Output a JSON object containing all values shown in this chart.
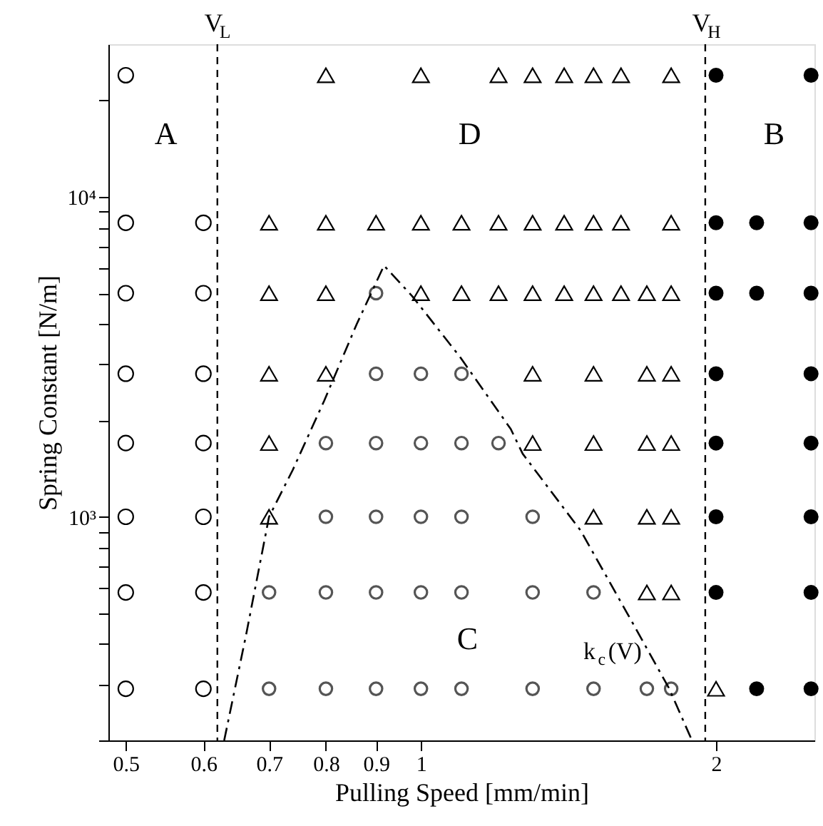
{
  "chart_data": {
    "type": "scatter",
    "xlabel": "Pulling Speed [mm/min]",
    "ylabel": "Spring Constant [N/m]",
    "log": "xy",
    "grid": false,
    "xlim": [
      0.48,
      2.52
    ],
    "xticks": [
      0.5,
      0.6,
      0.7,
      0.8,
      0.9,
      1,
      2
    ],
    "ylim": [
      200,
      30000
    ],
    "yticks": [
      {
        "value": 200,
        "label": null
      },
      {
        "value": 300,
        "label": null
      },
      {
        "value": 400,
        "label": null
      },
      {
        "value": 500,
        "label": null
      },
      {
        "value": 600,
        "label": null
      },
      {
        "value": 700,
        "label": null
      },
      {
        "value": 800,
        "label": null
      },
      {
        "value": 900,
        "label": null
      },
      {
        "value": 1000,
        "label": "10³"
      },
      {
        "value": 2000,
        "label": null
      },
      {
        "value": 3000,
        "label": null
      },
      {
        "value": 4000,
        "label": null
      },
      {
        "value": 5000,
        "label": null
      },
      {
        "value": 6000,
        "label": null
      },
      {
        "value": 7000,
        "label": null
      },
      {
        "value": 8000,
        "label": null
      },
      {
        "value": 9000,
        "label": null
      },
      {
        "value": 10000,
        "label": "10⁴"
      },
      {
        "value": 20000,
        "label": null
      }
    ],
    "series": [
      {
        "marker": "circle",
        "color": "#000000",
        "x": [
          0.5,
          0.5,
          0.6,
          0.5,
          0.6,
          0.5,
          0.6,
          0.5,
          0.6,
          0.5,
          0.6,
          0.5,
          0.6,
          0.5,
          0.6
        ],
        "values": [
          24000,
          8300,
          8300,
          5000,
          5000,
          2800,
          2800,
          1700,
          1700,
          1000,
          1000,
          580,
          580,
          290,
          290
        ]
      },
      {
        "marker": "triangle",
        "color": "#000000",
        "x": [
          0.8,
          1.0,
          1.2,
          1.3,
          1.4,
          1.5,
          1.6,
          1.8,
          0.7,
          0.8,
          0.9,
          1.0,
          1.1,
          1.2,
          1.3,
          1.4,
          1.5,
          1.6,
          1.8,
          0.7,
          0.8,
          1.0,
          1.1,
          1.2,
          1.3,
          1.4,
          1.5,
          1.6,
          1.7,
          1.8,
          0.7,
          0.8,
          1.3,
          1.5,
          1.7,
          1.8,
          0.7,
          1.3,
          1.5,
          1.7,
          1.8,
          0.7,
          1.5,
          1.7,
          1.8,
          1.7,
          1.8,
          2.0
        ],
        "values": [
          24000,
          24000,
          24000,
          24000,
          24000,
          24000,
          24000,
          24000,
          8300,
          8300,
          8300,
          8300,
          8300,
          8300,
          8300,
          8300,
          8300,
          8300,
          8300,
          5000,
          5000,
          5000,
          5000,
          5000,
          5000,
          5000,
          5000,
          5000,
          5000,
          5000,
          2800,
          2800,
          2800,
          2800,
          2800,
          2800,
          1700,
          1700,
          1700,
          1700,
          1700,
          1000,
          1000,
          1000,
          1000,
          580,
          580,
          290
        ]
      },
      {
        "marker": "circle",
        "color": "#555555",
        "x": [
          0.9,
          0.9,
          1.0,
          1.1,
          0.8,
          0.9,
          1.0,
          1.1,
          1.2,
          0.8,
          0.9,
          1.0,
          1.1,
          1.3,
          0.7,
          0.8,
          0.9,
          1.0,
          1.1,
          1.3,
          1.5,
          0.7,
          0.8,
          0.9,
          1.0,
          1.1,
          1.3,
          1.5,
          1.7,
          1.8
        ],
        "values": [
          5000,
          2800,
          2800,
          2800,
          1700,
          1700,
          1700,
          1700,
          1700,
          1000,
          1000,
          1000,
          1000,
          1000,
          580,
          580,
          580,
          580,
          580,
          580,
          580,
          290,
          290,
          290,
          290,
          290,
          290,
          290,
          290,
          290
        ]
      },
      {
        "marker": "circle",
        "color": "#000000",
        "x": [
          2.0,
          2.5,
          2.0,
          2.2,
          2.5,
          2.0,
          2.2,
          2.5,
          2.0,
          2.5,
          2.0,
          2.5,
          2.0,
          2.5,
          2.0,
          2.5,
          2.2,
          2.5
        ],
        "values": [
          24000,
          24000,
          8300,
          8300,
          8300,
          5000,
          5000,
          5000,
          2800,
          2800,
          1700,
          1700,
          1000,
          1000,
          580,
          580,
          290,
          290
        ]
      },
      {
        "type": "line",
        "line_style": "dashed",
        "color": "#000000",
        "x": [
          0.63,
          0.663,
          0.7,
          0.74,
          0.797,
          0.86,
          0.917,
          0.98,
          1.097,
          1.235,
          1.27,
          1.455,
          1.623,
          1.79,
          1.89
        ],
        "values": [
          200,
          425,
          1000,
          1400,
          2310,
          4000,
          6100,
          4890,
          3150,
          1880,
          1574,
          906,
          500,
          292,
          200
        ]
      }
    ],
    "ref_lines": [
      {
        "axis": "x",
        "value": 0.62,
        "label": "V$_{L}$",
        "line_style": "dashed"
      },
      {
        "axis": "x",
        "value": 1.95,
        "label": "V$_{H}$",
        "line_style": "dashed"
      }
    ],
    "annotations": [
      "A",
      "D",
      "B",
      "C",
      "k$_{c}$(V)"
    ]
  }
}
